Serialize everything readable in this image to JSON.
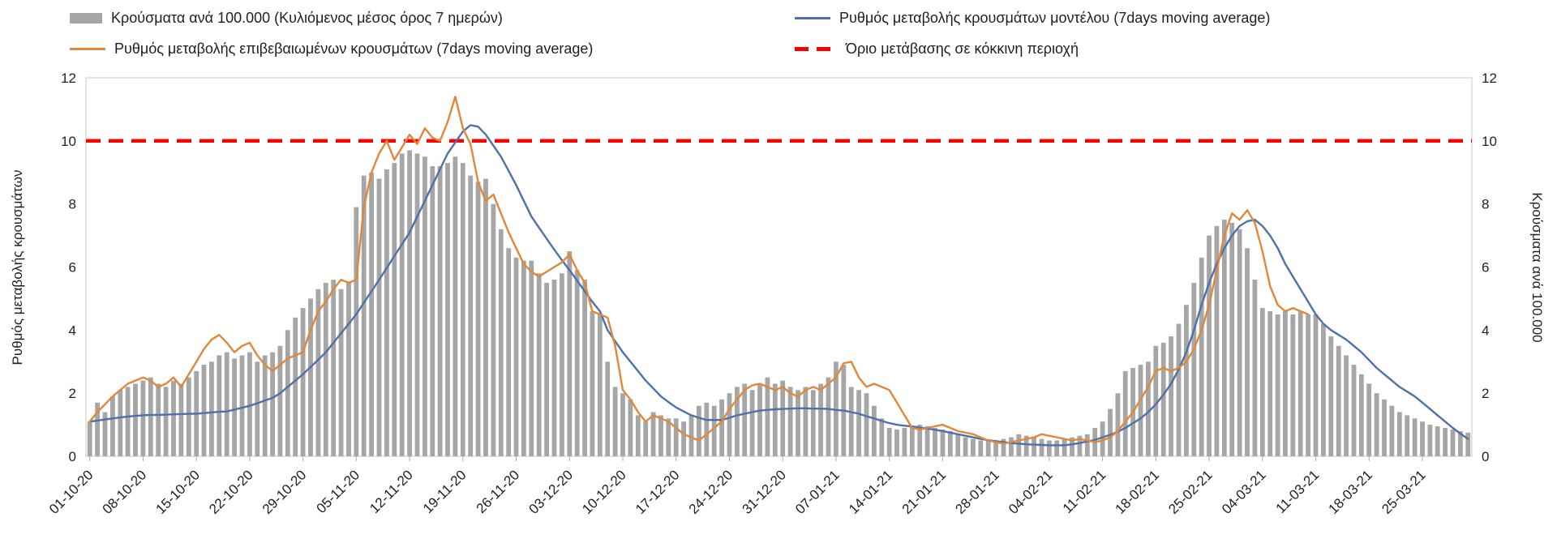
{
  "legend": {
    "items": [
      {
        "label": "Κρούσματα ανά 100.000 (Κυλιόμενος μέσος όρος 7 ημερών)",
        "swatch": "bar",
        "color": "#a6a6a6"
      },
      {
        "label": "Ρυθμός μεταβολής κρουσμάτων μοντέλου (7days moving average)",
        "swatch": "line",
        "color": "#4d72aa"
      },
      {
        "label": "Ρυθμός μεταβολής επιβεβαιωμένων κρουσμάτων (7days moving average)",
        "swatch": "line",
        "color": "#e0883a"
      },
      {
        "label": "Όριο μετάβασης σε κόκκινη περιοχή",
        "swatch": "dashed",
        "color": "#ff0000"
      }
    ]
  },
  "axes": {
    "left_title": "Ρυθμός μεταβολής κρουσμάτων",
    "right_title": "Κρούσματα ανά 100.000"
  },
  "chart_data": {
    "type": "bar",
    "subtype": "combo-bar-and-lines",
    "days": 182,
    "ylim": [
      0,
      12
    ],
    "y_ticks": [
      0,
      2,
      4,
      6,
      8,
      10,
      12
    ],
    "grid": false,
    "legend_position": "top",
    "x_ticks": [
      {
        "day": 0,
        "label": "01-10-20"
      },
      {
        "day": 7,
        "label": "08-10-20"
      },
      {
        "day": 14,
        "label": "15-10-20"
      },
      {
        "day": 21,
        "label": "22-10-20"
      },
      {
        "day": 28,
        "label": "29-10-20"
      },
      {
        "day": 35,
        "label": "05-11-20"
      },
      {
        "day": 42,
        "label": "12-11-20"
      },
      {
        "day": 49,
        "label": "19-11-20"
      },
      {
        "day": 56,
        "label": "26-11-20"
      },
      {
        "day": 63,
        "label": "03-12-20"
      },
      {
        "day": 70,
        "label": "10-12-20"
      },
      {
        "day": 77,
        "label": "17-12-20"
      },
      {
        "day": 84,
        "label": "24-12-20"
      },
      {
        "day": 91,
        "label": "31-12-20"
      },
      {
        "day": 98,
        "label": "07-01-21"
      },
      {
        "day": 105,
        "label": "14-01-21"
      },
      {
        "day": 112,
        "label": "21-01-21"
      },
      {
        "day": 119,
        "label": "28-01-21"
      },
      {
        "day": 126,
        "label": "04-02-21"
      },
      {
        "day": 133,
        "label": "11-02-21"
      },
      {
        "day": 140,
        "label": "18-02-21"
      },
      {
        "day": 147,
        "label": "25-02-21"
      },
      {
        "day": 154,
        "label": "04-03-21"
      },
      {
        "day": 161,
        "label": "11-03-21"
      },
      {
        "day": 168,
        "label": "18-03-21"
      },
      {
        "day": 175,
        "label": "25-03-21"
      }
    ],
    "series": [
      {
        "name": "Κρούσματα ανά 100.000 (Κυλιόμενος μέσος όρος 7 ημερών)",
        "type": "bar",
        "axis": "right",
        "color": "#a6a6a6",
        "values": [
          1.1,
          1.7,
          1.4,
          1.9,
          2.1,
          2.2,
          2.3,
          2.4,
          2.5,
          2.3,
          2.2,
          2.4,
          2.3,
          2.5,
          2.7,
          2.9,
          3.0,
          3.2,
          3.3,
          3.1,
          3.2,
          3.3,
          3.0,
          3.2,
          3.3,
          3.5,
          4.0,
          4.4,
          4.7,
          5.0,
          5.3,
          5.5,
          5.6,
          5.3,
          5.5,
          7.9,
          8.9,
          9.0,
          8.8,
          9.1,
          9.3,
          9.6,
          9.7,
          9.6,
          9.5,
          9.2,
          9.2,
          9.3,
          9.5,
          9.3,
          8.9,
          8.7,
          8.8,
          8.0,
          7.2,
          6.6,
          6.3,
          6.2,
          6.2,
          5.8,
          5.5,
          5.6,
          5.8,
          6.5,
          5.9,
          5.6,
          4.6,
          4.5,
          3.0,
          2.2,
          2.0,
          1.8,
          1.3,
          1.1,
          1.4,
          1.3,
          1.2,
          1.2,
          1.1,
          1.3,
          1.6,
          1.7,
          1.6,
          1.8,
          2.0,
          2.2,
          2.3,
          2.1,
          2.3,
          2.5,
          2.3,
          2.4,
          2.2,
          2.1,
          2.2,
          2.1,
          2.3,
          2.5,
          3.0,
          2.9,
          2.2,
          2.1,
          2.0,
          1.6,
          1.2,
          0.9,
          0.85,
          0.9,
          0.95,
          1.0,
          0.95,
          0.9,
          0.85,
          0.8,
          0.7,
          0.6,
          0.55,
          0.5,
          0.5,
          0.5,
          0.55,
          0.6,
          0.7,
          0.65,
          0.6,
          0.55,
          0.5,
          0.5,
          0.55,
          0.6,
          0.65,
          0.7,
          0.9,
          1.1,
          1.5,
          2.0,
          2.7,
          2.8,
          2.9,
          3.0,
          3.5,
          3.6,
          3.8,
          4.2,
          4.8,
          5.5,
          6.3,
          7.0,
          7.3,
          7.5,
          7.4,
          7.2,
          6.6,
          5.6,
          4.7,
          4.6,
          4.5,
          4.6,
          4.5,
          4.6,
          4.5,
          4.5,
          4.2,
          3.8,
          3.5,
          3.2,
          2.9,
          2.6,
          2.3,
          2.0,
          1.8,
          1.6,
          1.4,
          1.3,
          1.2,
          1.1,
          1.0,
          0.95,
          0.9,
          0.85,
          0.8,
          0.75
        ]
      },
      {
        "name": "Ρυθμός μεταβολής κρουσμάτων μοντέλου (7days moving average)",
        "type": "line",
        "axis": "left",
        "color": "#4d72aa",
        "values": [
          1.1,
          1.13,
          1.17,
          1.2,
          1.23,
          1.26,
          1.28,
          1.3,
          1.31,
          1.31,
          1.32,
          1.33,
          1.34,
          1.35,
          1.35,
          1.37,
          1.39,
          1.41,
          1.42,
          1.48,
          1.54,
          1.6,
          1.68,
          1.77,
          1.85,
          2.0,
          2.2,
          2.4,
          2.6,
          2.83,
          3.06,
          3.3,
          3.6,
          3.9,
          4.2,
          4.5,
          4.87,
          5.23,
          5.6,
          5.97,
          6.35,
          6.72,
          7.1,
          7.6,
          8.1,
          8.6,
          9.1,
          9.6,
          9.95,
          10.3,
          10.5,
          10.45,
          10.2,
          9.85,
          9.5,
          9.05,
          8.6,
          8.1,
          7.6,
          7.25,
          6.9,
          6.55,
          6.22,
          5.9,
          5.57,
          5.23,
          4.9,
          4.6,
          4.0,
          3.65,
          3.3,
          3.0,
          2.7,
          2.4,
          2.15,
          1.9,
          1.72,
          1.55,
          1.42,
          1.3,
          1.22,
          1.15,
          1.15,
          1.15,
          1.22,
          1.3,
          1.35,
          1.4,
          1.45,
          1.47,
          1.49,
          1.5,
          1.51,
          1.52,
          1.52,
          1.51,
          1.51,
          1.5,
          1.47,
          1.45,
          1.4,
          1.35,
          1.27,
          1.2,
          1.12,
          1.05,
          1.0,
          0.97,
          0.95,
          0.91,
          0.88,
          0.84,
          0.8,
          0.75,
          0.7,
          0.65,
          0.6,
          0.55,
          0.51,
          0.48,
          0.45,
          0.42,
          0.4,
          0.38,
          0.37,
          0.36,
          0.35,
          0.35,
          0.35,
          0.38,
          0.42,
          0.47,
          0.52,
          0.6,
          0.68,
          0.78,
          0.9,
          1.05,
          1.2,
          1.4,
          1.65,
          1.95,
          2.3,
          2.75,
          3.3,
          4.0,
          4.8,
          5.5,
          6.1,
          6.6,
          7.0,
          7.3,
          7.45,
          7.5,
          7.3,
          7.0,
          6.6,
          6.1,
          5.7,
          5.3,
          4.9,
          4.5,
          4.2,
          4.0,
          3.85,
          3.7,
          3.5,
          3.3,
          3.05,
          2.8,
          2.6,
          2.4,
          2.2,
          2.05,
          1.9,
          1.7,
          1.5,
          1.3,
          1.1,
          0.9,
          0.72,
          0.55
        ]
      },
      {
        "name": "Ρυθμός μεταβολής επιβεβαιωμένων κρουσμάτων (7days moving average)",
        "type": "line",
        "axis": "left",
        "color": "#e0883a",
        "values": [
          1.1,
          1.4,
          1.65,
          1.9,
          2.1,
          2.3,
          2.4,
          2.5,
          2.4,
          2.2,
          2.3,
          2.5,
          2.2,
          2.6,
          3.0,
          3.4,
          3.7,
          3.85,
          3.6,
          3.3,
          3.5,
          3.6,
          3.2,
          2.9,
          2.7,
          2.9,
          3.1,
          3.2,
          3.3,
          4.0,
          4.6,
          4.9,
          5.3,
          5.6,
          5.5,
          5.6,
          7.9,
          9.0,
          9.6,
          10.0,
          9.4,
          9.8,
          10.2,
          9.9,
          10.4,
          10.1,
          10.0,
          10.6,
          11.4,
          10.4,
          9.9,
          8.7,
          8.1,
          8.3,
          7.7,
          7.1,
          6.6,
          6.1,
          5.85,
          5.7,
          5.85,
          6.0,
          6.15,
          6.4,
          5.9,
          5.5,
          4.6,
          4.5,
          4.4,
          3.5,
          2.1,
          1.8,
          1.4,
          1.1,
          1.3,
          1.2,
          1.1,
          0.9,
          0.7,
          0.6,
          0.5,
          0.7,
          0.9,
          1.1,
          1.5,
          1.8,
          2.1,
          2.25,
          2.3,
          2.2,
          2.1,
          2.2,
          2.0,
          1.9,
          2.1,
          2.2,
          2.1,
          2.3,
          2.5,
          2.95,
          3.0,
          2.5,
          2.2,
          2.3,
          2.2,
          2.1,
          1.7,
          1.3,
          0.9,
          0.85,
          0.9,
          0.95,
          1.0,
          0.9,
          0.8,
          0.75,
          0.7,
          0.6,
          0.5,
          0.45,
          0.4,
          0.45,
          0.5,
          0.55,
          0.6,
          0.7,
          0.65,
          0.6,
          0.55,
          0.5,
          0.55,
          0.5,
          0.45,
          0.5,
          0.6,
          0.8,
          1.1,
          1.4,
          1.8,
          2.2,
          2.7,
          2.8,
          2.7,
          2.8,
          3.0,
          3.4,
          4.0,
          4.8,
          5.9,
          7.0,
          7.7,
          7.5,
          7.8,
          7.4,
          6.5,
          5.4,
          4.8,
          4.6,
          4.7,
          4.6,
          4.5,
          null,
          null,
          null,
          null,
          null,
          null,
          null,
          null,
          null,
          null,
          null,
          null,
          null,
          null,
          null,
          null,
          null,
          null,
          null,
          null,
          null
        ]
      },
      {
        "name": "Όριο μετάβασης σε κόκκινη περιοχή",
        "type": "threshold",
        "axis": "left",
        "color": "#ff0000",
        "value": 10
      }
    ]
  }
}
